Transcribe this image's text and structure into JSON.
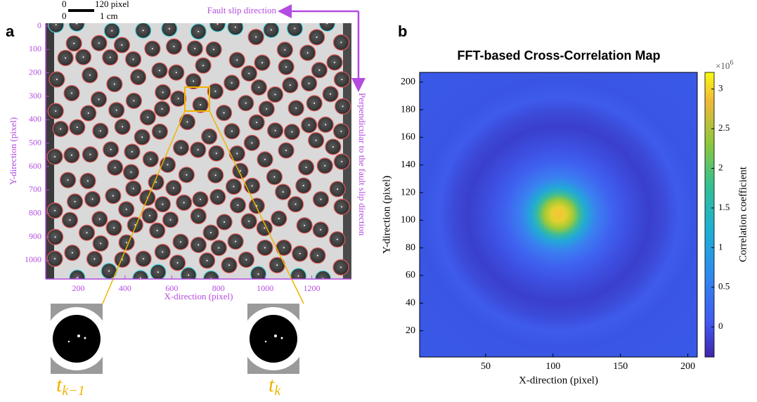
{
  "chart_data": [
    {
      "type": "image",
      "panel_label": "a",
      "xlabel": "X-direction (pixel)",
      "ylabel": "Y-direction (pixel)",
      "xlim": [
        60,
        1370
      ],
      "ylim": [
        -12,
        1080
      ],
      "xticks": [
        200,
        400,
        600,
        800,
        1000,
        1200
      ],
      "yticks": [
        0,
        100,
        200,
        300,
        400,
        500,
        600,
        700,
        800,
        900,
        1000
      ],
      "axis_color": "#b44be1",
      "scale_bar": [
        "0",
        "120 pixel",
        "0",
        "1 cm"
      ],
      "annotations": [
        "Fault slip direction",
        "Perpendicular to the fault slip direction"
      ],
      "insets": [
        {
          "symbol": "t",
          "subscript": "k−1"
        },
        {
          "symbol": "t",
          "subscript": "k"
        }
      ]
    },
    {
      "type": "heatmap",
      "panel_label": "b",
      "title": "FFT-based Cross-Correlation Map",
      "xlabel": "X-direction (pixel)",
      "ylabel": "Y-direction (pixel)",
      "xlim": [
        1,
        207
      ],
      "ylim": [
        1,
        207
      ],
      "xticks": [
        50,
        100,
        150,
        200
      ],
      "yticks": [
        20,
        40,
        60,
        80,
        100,
        120,
        140,
        160,
        180,
        200
      ],
      "colorbar": {
        "label": "Correlation coefficient",
        "multiplier": {
          "base": "×10",
          "exponent": "6"
        },
        "lim": [
          -0.38,
          3.21
        ],
        "ticks": [
          0,
          0.5,
          1,
          1.5,
          2,
          2.5,
          3
        ]
      }
    }
  ]
}
